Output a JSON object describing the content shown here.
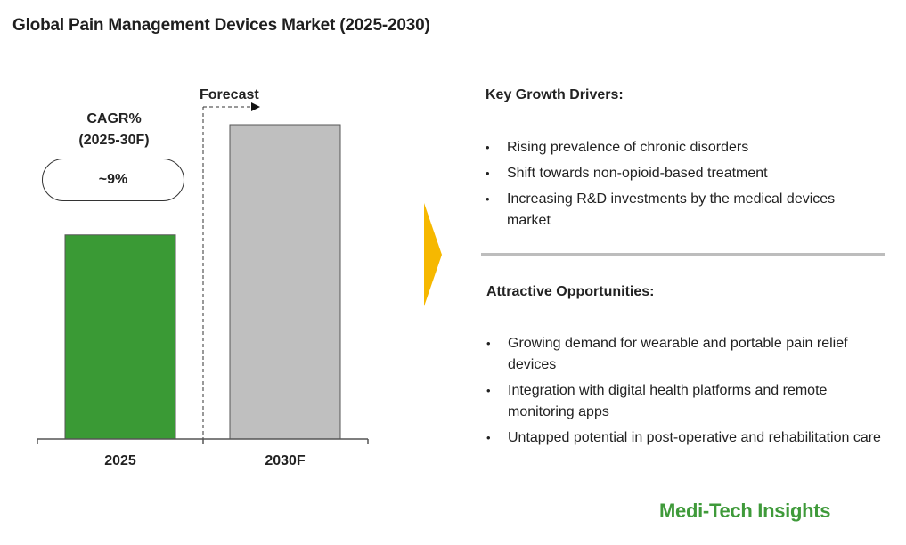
{
  "title": "Global Pain Management Devices Market (2025-2030)",
  "chart_data": {
    "type": "bar",
    "categories": [
      "2025",
      "2030F"
    ],
    "values": [
      1.0,
      1.54
    ],
    "colors": [
      "#3a9a35",
      "#bfbfbf"
    ],
    "annotations": {
      "cagr_label": "CAGR%\n(2025-30F)",
      "cagr_value": "~9%",
      "forecast_label": "Forecast"
    }
  },
  "drivers": {
    "heading": "Key Growth Drivers:",
    "items": [
      "Rising prevalence of chronic disorders",
      "Shift towards non-opioid-based treatment",
      "Increasing R&D investments by the medical devices market"
    ]
  },
  "opportunities": {
    "heading": "Attractive Opportunities:",
    "items": [
      "Growing demand for wearable and portable pain relief devices",
      "Integration with digital health platforms and remote monitoring apps",
      "Untapped potential in post-operative and rehabilitation care"
    ]
  },
  "logo": "Medi-Tech Insights",
  "accent_color": "#f6b800"
}
